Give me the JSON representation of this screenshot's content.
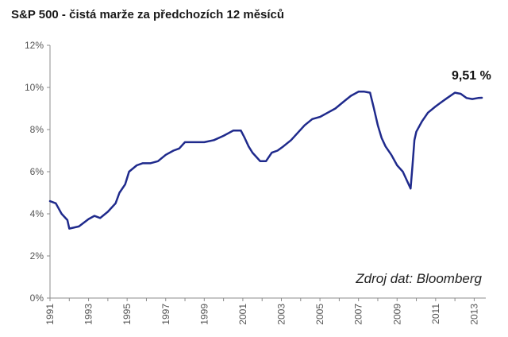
{
  "chart_data": {
    "type": "line",
    "title": "S&P 500 - čistá marže za předchozích 12 měsíců",
    "xlabel": "",
    "ylabel": "",
    "x_tick_labels": [
      "1991",
      "1993",
      "1995",
      "1997",
      "1999",
      "2001",
      "2003",
      "2005",
      "2007",
      "2009",
      "2011",
      "2013"
    ],
    "y_tick_labels": [
      "0%",
      "2%",
      "4%",
      "6%",
      "8%",
      "10%",
      "12%"
    ],
    "xlim": [
      1991.0,
      2013.6
    ],
    "ylim": [
      0,
      12
    ],
    "grid": false,
    "legend": "none",
    "line_color": "#1f2a8c",
    "annotations": {
      "last_value": "9,51 %",
      "source": "Zdroj dat: Bloomberg"
    },
    "series": [
      {
        "x": [
          1991.0,
          1991.3,
          1991.6,
          1991.9,
          1992.0,
          1992.5,
          1993.0,
          1993.3,
          1993.6,
          1994.0,
          1994.4,
          1994.6,
          1994.9,
          1995.1,
          1995.5,
          1995.8,
          1996.2,
          1996.6,
          1997.0,
          1997.4,
          1997.7,
          1998.0,
          1998.5,
          1999.0,
          1999.5,
          2000.0,
          2000.5,
          2000.9,
          2001.1,
          2001.3,
          2001.5,
          2001.7,
          2001.9,
          2002.2,
          2002.5,
          2002.8,
          2003.1,
          2003.5,
          2003.9,
          2004.2,
          2004.6,
          2005.0,
          2005.4,
          2005.8,
          2006.2,
          2006.6,
          2007.0,
          2007.3,
          2007.6,
          2007.8,
          2008.0,
          2008.2,
          2008.4,
          2008.7,
          2009.0,
          2009.3,
          2009.5,
          2009.7,
          2009.8,
          2009.9,
          2010.0,
          2010.3,
          2010.6,
          2011.0,
          2011.3,
          2011.6,
          2012.0,
          2012.3,
          2012.6,
          2012.9,
          2013.2,
          2013.4
        ],
        "values": [
          4.6,
          4.5,
          4.0,
          3.7,
          3.3,
          3.4,
          3.75,
          3.9,
          3.8,
          4.1,
          4.5,
          5.0,
          5.4,
          6.0,
          6.3,
          6.4,
          6.4,
          6.5,
          6.8,
          7.0,
          7.1,
          7.4,
          7.4,
          7.4,
          7.5,
          7.7,
          7.95,
          7.95,
          7.6,
          7.2,
          6.9,
          6.7,
          6.5,
          6.5,
          6.9,
          7.0,
          7.2,
          7.5,
          7.9,
          8.2,
          8.5,
          8.6,
          8.8,
          9.0,
          9.3,
          9.6,
          9.8,
          9.8,
          9.75,
          9.0,
          8.2,
          7.6,
          7.2,
          6.8,
          6.3,
          6.0,
          5.6,
          5.2,
          6.3,
          7.5,
          7.9,
          8.4,
          8.8,
          9.1,
          9.3,
          9.5,
          9.75,
          9.7,
          9.5,
          9.45,
          9.5,
          9.51
        ]
      }
    ]
  }
}
